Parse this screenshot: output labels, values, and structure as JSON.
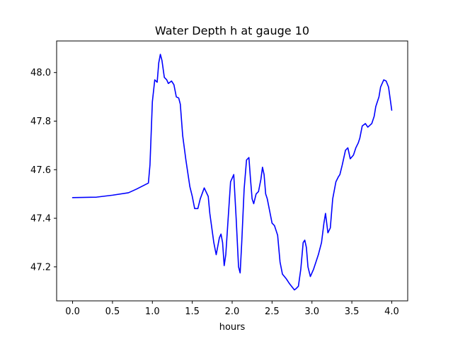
{
  "chart_data": {
    "type": "line",
    "title": "Water Depth h at gauge 10",
    "xlabel": "hours",
    "ylabel": "",
    "xlim": [
      -0.2,
      4.2
    ],
    "ylim": [
      47.06,
      48.13
    ],
    "grid": false,
    "xticks": [
      0.0,
      0.5,
      1.0,
      1.5,
      2.0,
      2.5,
      3.0,
      3.5,
      4.0
    ],
    "xtick_labels": [
      "0.0",
      "0.5",
      "1.0",
      "1.5",
      "2.0",
      "2.5",
      "3.0",
      "3.5",
      "4.0"
    ],
    "yticks": [
      47.2,
      47.4,
      47.6,
      47.8,
      48.0
    ],
    "ytick_labels": [
      "47.2",
      "47.4",
      "47.6",
      "47.8",
      "48.0"
    ],
    "series": [
      {
        "name": "h",
        "color": "#0000ff",
        "x": [
          0.0,
          0.3,
          0.5,
          0.7,
          0.8,
          0.95,
          0.97,
          1.0,
          1.03,
          1.06,
          1.08,
          1.1,
          1.12,
          1.15,
          1.18,
          1.2,
          1.24,
          1.27,
          1.3,
          1.33,
          1.35,
          1.38,
          1.42,
          1.47,
          1.5,
          1.53,
          1.57,
          1.6,
          1.65,
          1.7,
          1.72,
          1.77,
          1.8,
          1.84,
          1.86,
          1.88,
          1.9,
          1.92,
          1.95,
          1.98,
          2.02,
          2.05,
          2.08,
          2.1,
          2.12,
          2.15,
          2.18,
          2.21,
          2.23,
          2.25,
          2.27,
          2.3,
          2.33,
          2.36,
          2.38,
          2.4,
          2.42,
          2.44,
          2.47,
          2.5,
          2.53,
          2.57,
          2.6,
          2.63,
          2.68,
          2.72,
          2.78,
          2.8,
          2.83,
          2.86,
          2.89,
          2.91,
          2.93,
          2.95,
          2.98,
          3.02,
          3.05,
          3.08,
          3.12,
          3.15,
          3.17,
          3.2,
          3.23,
          3.26,
          3.3,
          3.33,
          3.35,
          3.38,
          3.42,
          3.45,
          3.48,
          3.52,
          3.55,
          3.58,
          3.6,
          3.63,
          3.67,
          3.7,
          3.75,
          3.78,
          3.8,
          3.84,
          3.86,
          3.9,
          3.93,
          3.96,
          4.0
        ],
        "values": [
          47.485,
          47.487,
          47.495,
          47.505,
          47.52,
          47.545,
          47.62,
          47.88,
          47.97,
          47.96,
          48.04,
          48.075,
          48.05,
          47.98,
          47.97,
          47.955,
          47.965,
          47.95,
          47.9,
          47.895,
          47.87,
          47.74,
          47.64,
          47.53,
          47.49,
          47.44,
          47.44,
          47.48,
          47.525,
          47.49,
          47.42,
          47.3,
          47.25,
          47.32,
          47.335,
          47.3,
          47.205,
          47.25,
          47.4,
          47.55,
          47.58,
          47.4,
          47.2,
          47.175,
          47.3,
          47.52,
          47.64,
          47.65,
          47.56,
          47.48,
          47.46,
          47.5,
          47.51,
          47.56,
          47.61,
          47.58,
          47.5,
          47.48,
          47.43,
          47.38,
          47.37,
          47.33,
          47.22,
          47.17,
          47.15,
          47.13,
          47.105,
          47.11,
          47.12,
          47.19,
          47.3,
          47.31,
          47.28,
          47.2,
          47.16,
          47.19,
          47.22,
          47.25,
          47.3,
          47.38,
          47.42,
          47.34,
          47.36,
          47.48,
          47.55,
          47.57,
          47.58,
          47.62,
          47.68,
          47.69,
          47.645,
          47.66,
          47.69,
          47.71,
          47.73,
          47.78,
          47.79,
          47.775,
          47.79,
          47.82,
          47.86,
          47.9,
          47.94,
          47.97,
          47.965,
          47.94,
          47.845
        ]
      }
    ]
  }
}
